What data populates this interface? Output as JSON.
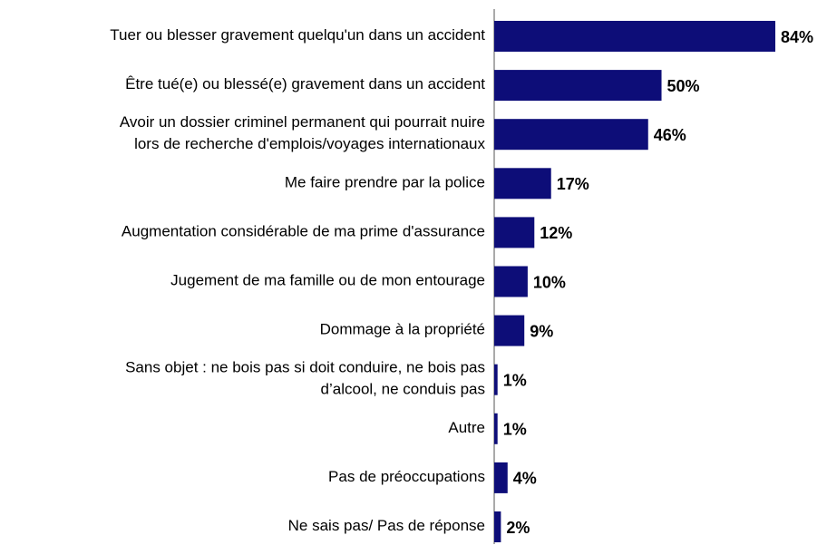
{
  "chart_data": {
    "type": "hbar",
    "categories": [
      "Tuer ou blesser gravement quelqu'un dans un accident",
      "Être tué(e) ou blessé(e) gravement dans un accident",
      "Avoir un dossier criminel permanent qui pourrait nuire\nlors de recherche d'emplois/voyages internationaux",
      "Me faire prendre par la police",
      "Augmentation considérable de ma prime d'assurance",
      "Jugement de ma famille ou de mon entourage",
      "Dommage à la propriété",
      "Sans objet : ne bois pas si doit conduire, ne bois pas\nd’alcool, ne conduis pas",
      "Autre",
      "Pas de préoccupations",
      "Ne sais pas/ Pas de réponse"
    ],
    "values": [
      84,
      50,
      46,
      17,
      12,
      10,
      9,
      1,
      1,
      4,
      2
    ],
    "value_labels": [
      "84%",
      "50%",
      "46%",
      "17%",
      "12%",
      "10%",
      "9%",
      "1%",
      "1%",
      "4%",
      "2%"
    ],
    "color": "#0d0d78"
  }
}
